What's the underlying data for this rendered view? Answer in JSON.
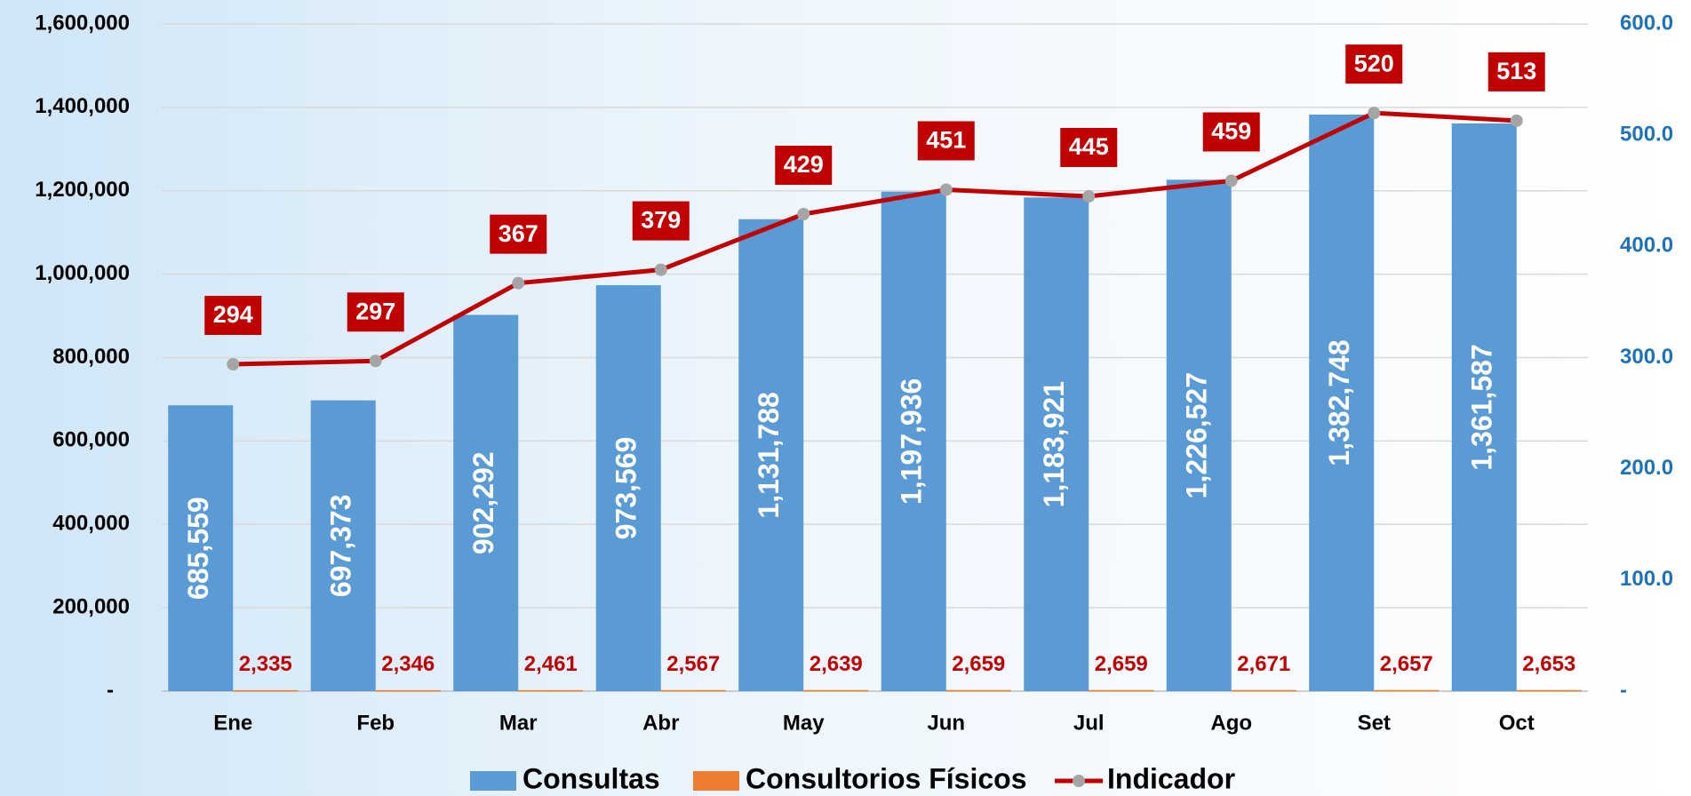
{
  "chart_data": {
    "type": "bar-line",
    "categories": [
      "Ene",
      "Feb",
      "Mar",
      "Abr",
      "May",
      "Jun",
      "Jul",
      "Ago",
      "Set",
      "Oct"
    ],
    "series": [
      {
        "name": "Consultas",
        "type": "bar",
        "color": "#5b9bd5",
        "values": [
          685559,
          697373,
          902292,
          973569,
          1131788,
          1197936,
          1183921,
          1226527,
          1382748,
          1361587
        ],
        "value_labels": [
          "685,559",
          "697,373",
          "902,292",
          "973,569",
          "1,131,788",
          "1,197,936",
          "1,183,921",
          "1,226,527",
          "1,382,748",
          "1,361,587"
        ]
      },
      {
        "name": "Consultorios Físicos",
        "type": "bar",
        "color": "#ed7d31",
        "values": [
          2335,
          2346,
          2461,
          2567,
          2639,
          2659,
          2659,
          2671,
          2657,
          2653
        ],
        "value_labels": [
          "2,335",
          "2,346",
          "2,461",
          "2,567",
          "2,639",
          "2,659",
          "2,659",
          "2,671",
          "2,657",
          "2,653"
        ]
      },
      {
        "name": "Indicador",
        "type": "line",
        "axis": "y2",
        "color": "#c00000",
        "marker_color": "#a5a5a5",
        "values": [
          294,
          297,
          367,
          379,
          429,
          451,
          445,
          459,
          520,
          513
        ]
      }
    ],
    "ylim": [
      0,
      1600000
    ],
    "yticks": [
      {
        "value": 0,
        "label": "-"
      },
      {
        "value": 200000,
        "label": "200,000"
      },
      {
        "value": 400000,
        "label": "400,000"
      },
      {
        "value": 600000,
        "label": "600,000"
      },
      {
        "value": 800000,
        "label": "800,000"
      },
      {
        "value": 1000000,
        "label": "1,000,000"
      },
      {
        "value": 1200000,
        "label": "1,200,000"
      },
      {
        "value": 1400000,
        "label": "1,400,000"
      },
      {
        "value": 1600000,
        "label": "1,600,000"
      }
    ],
    "y2lim": [
      0,
      600
    ],
    "y2ticks": [
      {
        "value": 0,
        "label": "-"
      },
      {
        "value": 100,
        "label": "100.0"
      },
      {
        "value": 200,
        "label": "200.0"
      },
      {
        "value": 300,
        "label": "300.0"
      },
      {
        "value": 400,
        "label": "400.0"
      },
      {
        "value": 500,
        "label": "500.0"
      },
      {
        "value": 600,
        "label": "600.0"
      }
    ],
    "grid": true,
    "legend": "bottom"
  }
}
